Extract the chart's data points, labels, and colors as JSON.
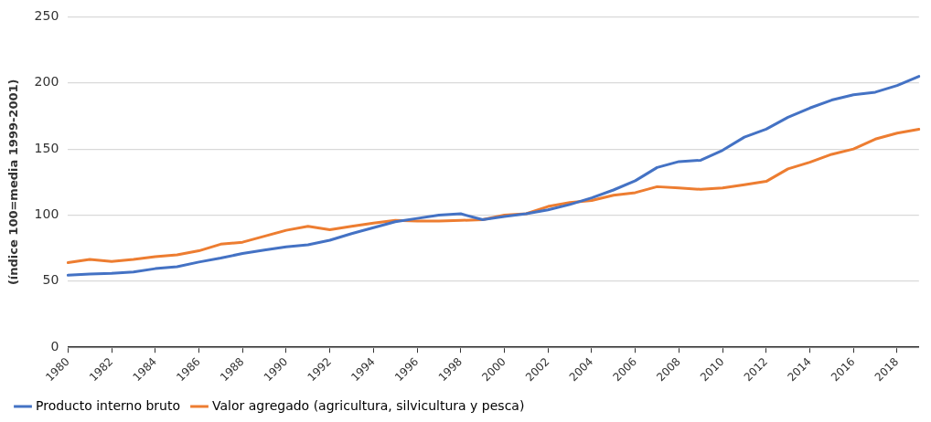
{
  "chart_data": {
    "type": "line",
    "ylabel": "(índice 100=media 1999-2001)",
    "categories": [
      "1980",
      null,
      "1982",
      null,
      "1984",
      null,
      "1986",
      null,
      "1988",
      null,
      "1990",
      null,
      "1992",
      null,
      "1994",
      null,
      "1996",
      null,
      "1998",
      null,
      "2000",
      null,
      "2002",
      null,
      "2004",
      null,
      "2006",
      null,
      "2008",
      null,
      "2010",
      null,
      "2012",
      null,
      "2014",
      null,
      "2016",
      null,
      "2018",
      null
    ],
    "series": [
      {
        "name": "Producto interno bruto",
        "color": "#4472c4",
        "values": [
          54.5,
          55.5,
          56,
          57,
          59.5,
          61,
          64.5,
          67.5,
          71,
          73.5,
          76,
          77.5,
          81,
          86,
          90.5,
          95,
          97.5,
          100,
          101,
          96.5,
          99,
          101,
          104,
          108,
          113,
          119,
          126,
          136,
          140.5,
          141.5,
          149,
          159,
          165,
          174,
          181,
          187,
          191,
          193,
          198,
          205
        ]
      },
      {
        "name": "Valor agregado (agricultura, silvicultura y pesca)",
        "color": "#ed7d31",
        "values": [
          64,
          66.5,
          65,
          66.5,
          68.5,
          70,
          73,
          78,
          79.5,
          84,
          88.5,
          91.5,
          89,
          91.5,
          94,
          96,
          95.5,
          95.5,
          96,
          96.5,
          100,
          101,
          106.5,
          109.5,
          111,
          115,
          117,
          121.5,
          120.5,
          119.5,
          120.5,
          123,
          125.5,
          135,
          140,
          146,
          150,
          157.5,
          162,
          165
        ]
      }
    ],
    "ylim": [
      0,
      250
    ],
    "yticks": [
      0,
      50,
      100,
      150,
      200,
      250
    ],
    "grid": "y",
    "legend": "bottom left",
    "marker": "none",
    "line_style": "solid"
  }
}
